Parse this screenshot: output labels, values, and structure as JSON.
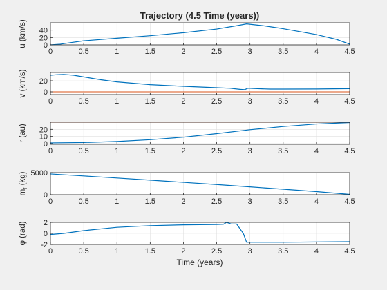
{
  "figure": {
    "title": "Trajectory (4.5 Time (years))",
    "xlabel": "Time (years)"
  },
  "colors": {
    "line": "#0072BD",
    "ref": "#D95319",
    "grid": "#dfdfdf",
    "axes": "#262626",
    "bg": "#f0f0f0"
  },
  "chart_data": [
    {
      "type": "line",
      "ylabel": "u (km/s)",
      "xlim": [
        0,
        4.5
      ],
      "ylim": [
        0,
        60
      ],
      "xticks": [
        0,
        0.5,
        1,
        1.5,
        2,
        2.5,
        3,
        3.5,
        4,
        4.5
      ],
      "yticks": [
        0,
        20,
        40
      ],
      "grid": true,
      "series": [
        {
          "x": [
            0,
            0.15,
            0.3,
            0.5,
            1,
            1.5,
            2,
            2.5,
            2.8,
            2.95,
            3.2,
            3.5,
            4,
            4.3,
            4.5
          ],
          "y": [
            0,
            2,
            6,
            11,
            18,
            25,
            33,
            43,
            52,
            57,
            52,
            44,
            28,
            15,
            2
          ]
        }
      ]
    },
    {
      "type": "line",
      "ylabel": "v (km/s)",
      "xlim": [
        0,
        4.5
      ],
      "ylim": [
        -5,
        35
      ],
      "xticks": [
        0,
        0.5,
        1,
        1.5,
        2,
        2.5,
        3,
        3.5,
        4,
        4.5
      ],
      "yticks": [
        0,
        20
      ],
      "grid": true,
      "series": [
        {
          "x": [
            0,
            0.1,
            0.2,
            0.35,
            0.5,
            0.75,
            1,
            1.5,
            2,
            2.5,
            2.7,
            2.85,
            2.92,
            2.97,
            3.05,
            3.3,
            3.5,
            4,
            4.5
          ],
          "y": [
            30,
            31,
            31.5,
            30,
            27,
            22,
            18,
            13,
            10,
            7.5,
            6.5,
            4.5,
            4,
            6.5,
            6,
            5,
            5,
            5.2,
            5.8
          ]
        },
        {
          "x": [
            0,
            4.5
          ],
          "y": [
            0,
            0
          ],
          "ref": true
        }
      ]
    },
    {
      "type": "line",
      "ylabel": "r (au)",
      "xlim": [
        0,
        4.5
      ],
      "ylim": [
        -1,
        30
      ],
      "xticks": [
        0,
        0.5,
        1,
        1.5,
        2,
        2.5,
        3,
        3.5,
        4,
        4.5
      ],
      "yticks": [
        0,
        10,
        20
      ],
      "grid": true,
      "series": [
        {
          "x": [
            0,
            0.5,
            1,
            1.5,
            2,
            2.5,
            3,
            3.5,
            4,
            4.5
          ],
          "y": [
            1,
            1.5,
            3,
            5.5,
            9,
            14,
            19.5,
            24,
            27.5,
            29.5
          ]
        },
        {
          "x": [
            0,
            4.5
          ],
          "y": [
            30,
            30
          ],
          "ref": true
        }
      ]
    },
    {
      "type": "line",
      "ylabel": "m_f (kg)",
      "xlim": [
        0,
        4.5
      ],
      "ylim": [
        0,
        5000
      ],
      "xticks": [
        0,
        0.5,
        1,
        1.5,
        2,
        2.5,
        3,
        3.5,
        4,
        4.5
      ],
      "yticks": [
        0,
        5000
      ],
      "grid": true,
      "series": [
        {
          "x": [
            0,
            0.5,
            1,
            1.5,
            2,
            2.5,
            3,
            3.5,
            4,
            4.5
          ],
          "y": [
            4700,
            4250,
            3780,
            3300,
            2800,
            2300,
            1780,
            1250,
            700,
            80
          ]
        }
      ]
    },
    {
      "type": "line",
      "ylabel": "φ (rad)",
      "xlim": [
        0,
        4.5
      ],
      "ylim": [
        -2,
        2
      ],
      "xticks": [
        0,
        0.5,
        1,
        1.5,
        2,
        2.5,
        3,
        3.5,
        4,
        4.5
      ],
      "yticks": [
        -2,
        0,
        2
      ],
      "grid": true,
      "series": [
        {
          "x": [
            0,
            0.2,
            0.5,
            1,
            1.5,
            2,
            2.5,
            2.6,
            2.65,
            2.72,
            2.8,
            2.9,
            2.95,
            3.1,
            3.5,
            4,
            4.5
          ],
          "y": [
            -0.2,
            0,
            0.5,
            1.1,
            1.4,
            1.55,
            1.6,
            1.65,
            2.0,
            1.7,
            1.7,
            0,
            -1.6,
            -1.6,
            -1.6,
            -1.55,
            -1.5
          ]
        }
      ]
    }
  ]
}
